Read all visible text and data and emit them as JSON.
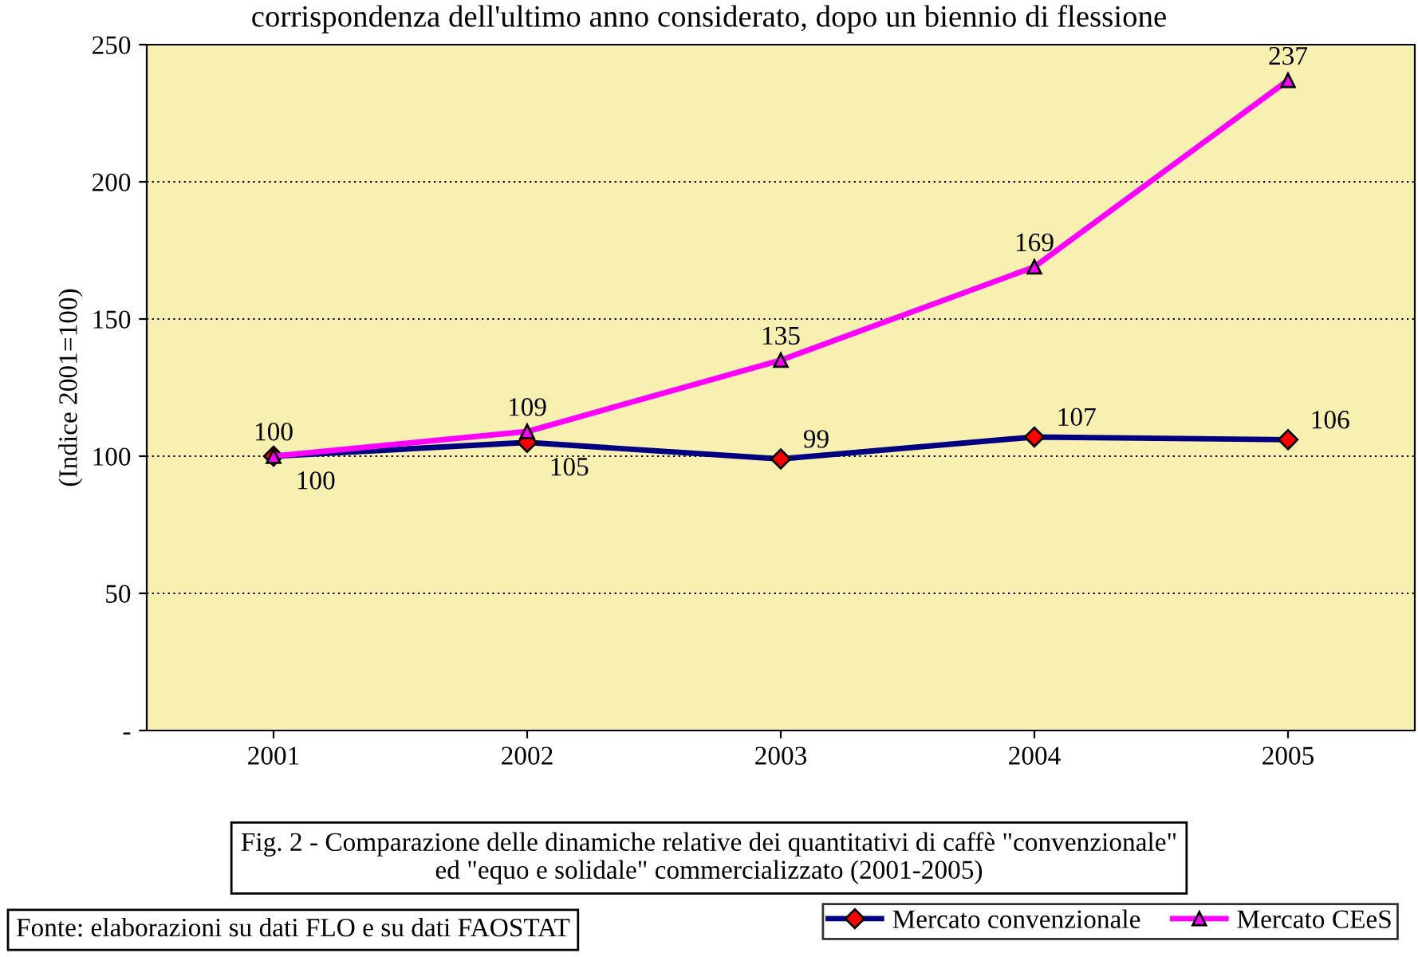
{
  "chart_data": {
    "type": "line",
    "title": "Fig. 2 - Comparazione delle dinamiche relative dei quantitativi di caffè \"convenzionale\"\ned \"equo e solidale\" commercializzato (2001-2005)",
    "ylabel": "(Indice 2001=100)",
    "categories": [
      "2001",
      "2002",
      "2003",
      "2004",
      "2005"
    ],
    "series": [
      {
        "name": "Mercato convenzionale",
        "color": "#000080",
        "marker": "diamond",
        "values": [
          100,
          105,
          99,
          107,
          106
        ]
      },
      {
        "name": "Mercato CEeS",
        "color": "#ff00ff",
        "marker": "triangle",
        "values": [
          100,
          109,
          135,
          169,
          237
        ]
      }
    ],
    "ylim": [
      0,
      250
    ],
    "yticks": [
      {
        "value": 0,
        "label": "-"
      },
      50,
      100,
      150,
      200,
      250
    ],
    "grid": "y",
    "legend": "bottom",
    "data_labels": true,
    "annotations": [
      "corrispondenza dell'ultimo anno considerato, dopo un biennio di flessione",
      "Fonte: elaborazioni su dati FLO e su dati FAOSTAT"
    ]
  }
}
